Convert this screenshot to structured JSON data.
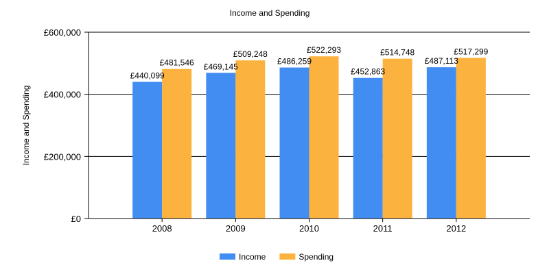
{
  "chart_data": {
    "type": "bar",
    "title": "Income and Spending",
    "xlabel": "",
    "ylabel": "Income and Spending",
    "categories": [
      "2008",
      "2009",
      "2010",
      "2011",
      "2012"
    ],
    "series": [
      {
        "name": "Income",
        "color": "#428df2",
        "values": [
          440099,
          469145,
          486259,
          452863,
          487113
        ],
        "labels": [
          "£440,099",
          "£469,145",
          "£486,259",
          "£452,863",
          "£487,113"
        ]
      },
      {
        "name": "Spending",
        "color": "#fbb23f",
        "values": [
          481546,
          509248,
          522293,
          514748,
          517299
        ],
        "labels": [
          "£481,546",
          "£509,248",
          "£522,293",
          "£514,748",
          "£517,299"
        ]
      }
    ],
    "ylim": [
      0,
      600000
    ],
    "yticks": [
      0,
      200000,
      400000,
      600000
    ],
    "ytick_labels": [
      "£0",
      "£200,000",
      "£400,000",
      "£600,000"
    ],
    "grid": true,
    "legend_position": "bottom-center"
  }
}
